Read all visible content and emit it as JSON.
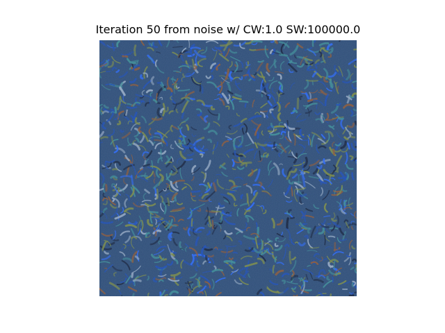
{
  "figure": {
    "title": "Iteration 50 from noise w/ CW:1.0 SW:100000.0"
  },
  "image": {
    "description_colors": {
      "base": "#31507a",
      "blue": "#1f4fb8",
      "bright_blue": "#2c6bff",
      "teal": "#3f8f98",
      "olive": "#7f8e45",
      "dark": "#17233d",
      "light": "#9db0c8",
      "rust": "#8e5a38"
    }
  }
}
